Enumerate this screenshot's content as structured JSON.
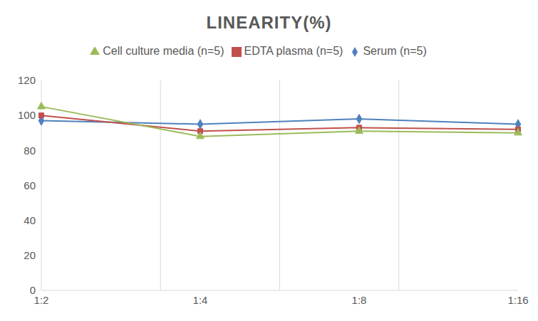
{
  "chart_data": {
    "type": "line",
    "title": "LINEARITY(%)",
    "categories": [
      "1:2",
      "1:4",
      "1:8",
      "1:16"
    ],
    "series": [
      {
        "name": "Serum (n=5)",
        "color": "#4f81bd",
        "marker": "diamond",
        "values": [
          97,
          95,
          98,
          95
        ]
      },
      {
        "name": "EDTA plasma (n=5)",
        "color": "#c0504d",
        "marker": "square",
        "values": [
          100,
          91,
          93,
          92
        ]
      },
      {
        "name": "Cell culture media (n=5)",
        "color": "#9bbb59",
        "marker": "triangle",
        "values": [
          105,
          88,
          91,
          90
        ]
      }
    ],
    "ylim": [
      0,
      120
    ],
    "yticks": [
      0,
      20,
      40,
      60,
      80,
      100,
      120
    ],
    "grid": true,
    "legend": "top"
  }
}
